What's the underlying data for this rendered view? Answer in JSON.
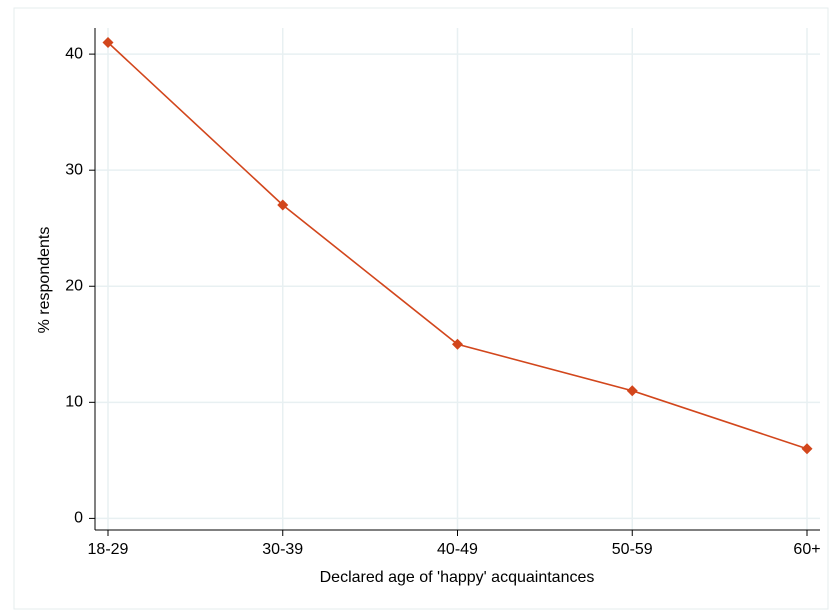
{
  "chart_data": {
    "type": "line",
    "x_label": "Declared age of 'happy' acquaintances",
    "y_label": "% respondents",
    "categories": [
      "18-29",
      "30-39",
      "40-49",
      "50-59",
      "60+"
    ],
    "series": [
      {
        "name": "% respondents",
        "color": "#d2461c",
        "values": [
          41,
          27,
          15,
          11,
          6
        ]
      }
    ],
    "ylim": [
      -1,
      42.25
    ],
    "yticks": [
      0,
      10,
      20,
      30,
      40
    ],
    "grid": true
  }
}
